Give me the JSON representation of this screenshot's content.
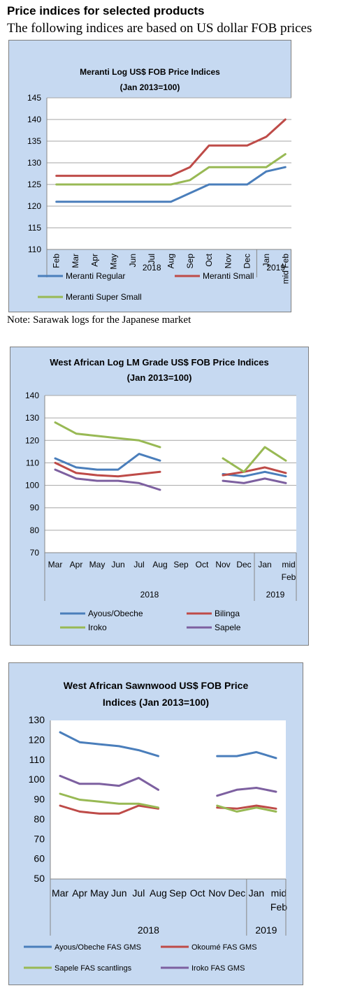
{
  "header": {
    "title": "Price indices for selected products",
    "subtitle": "The following indices are based on US dollar FOB prices"
  },
  "note": "Note: Sarawak logs for the Japanese market",
  "colors": {
    "panel_bg": "#c6d9f1",
    "plot_bg": "#ffffff",
    "blue": "#4a7ebb",
    "red": "#be4b48",
    "green": "#98b954",
    "purple": "#7d60a0"
  },
  "chart_data": [
    {
      "type": "line",
      "title": "Meranti Log US$ FOB Price Indices",
      "subtitle": "(Jan 2013=100)",
      "categories": [
        "Feb",
        "Mar",
        "Apr",
        "May",
        "Jun",
        "Jul",
        "Aug",
        "Sep",
        "Oct",
        "Nov",
        "Dec",
        "Jan",
        "mid Feb"
      ],
      "year_labels": [
        "2018",
        "2019"
      ],
      "ylim": [
        110,
        145
      ],
      "yticks": [
        110,
        115,
        120,
        125,
        130,
        135,
        140,
        145
      ],
      "grid": true,
      "legend_position": "bottom",
      "series": [
        {
          "name": "Meranti Regular",
          "color": "#4a7ebb",
          "values": [
            121,
            121,
            121,
            121,
            121,
            121,
            121,
            123,
            125,
            125,
            125,
            128,
            129
          ]
        },
        {
          "name": "Meranti Small",
          "color": "#be4b48",
          "values": [
            127,
            127,
            127,
            127,
            127,
            127,
            127,
            129,
            134,
            134,
            134,
            136,
            140
          ]
        },
        {
          "name": "Meranti Super Small",
          "color": "#98b954",
          "values": [
            125,
            125,
            125,
            125,
            125,
            125,
            125,
            126,
            129,
            129,
            129,
            129,
            132
          ]
        }
      ]
    },
    {
      "type": "line",
      "title": "West African Log LM Grade US$ FOB Price Indices",
      "subtitle": "(Jan 2013=100)",
      "categories": [
        "Mar",
        "Apr",
        "May",
        "Jun",
        "Jul",
        "Aug",
        "Sep",
        "Oct",
        "Nov",
        "Dec",
        "Jan",
        "mid Feb"
      ],
      "year_labels": [
        "2018",
        "2019"
      ],
      "ylim": [
        70,
        140
      ],
      "yticks": [
        70,
        80,
        90,
        100,
        110,
        120,
        130,
        140
      ],
      "grid": true,
      "legend_position": "bottom",
      "series": [
        {
          "name": "Ayous/Obeche",
          "color": "#4a7ebb",
          "values": [
            112,
            108,
            107,
            107,
            114,
            111,
            null,
            null,
            105,
            104,
            106,
            104
          ]
        },
        {
          "name": "Bilinga",
          "color": "#be4b48",
          "values": [
            110,
            105.5,
            104.5,
            104,
            105,
            106,
            null,
            null,
            104.5,
            106,
            108,
            105.5
          ]
        },
        {
          "name": "Iroko",
          "color": "#98b954",
          "values": [
            128,
            123,
            122,
            121,
            120,
            117,
            null,
            null,
            112,
            106,
            117,
            111
          ]
        },
        {
          "name": "Sapele",
          "color": "#7d60a0",
          "values": [
            107,
            103,
            102,
            102,
            101,
            98,
            null,
            null,
            102,
            101,
            103,
            101
          ]
        }
      ]
    },
    {
      "type": "line",
      "title": "West African Sawnwood US$ FOB Price",
      "subtitle": "Indices (Jan 2013=100)",
      "categories": [
        "Mar",
        "Apr",
        "May",
        "Jun",
        "Jul",
        "Aug",
        "Sep",
        "Oct",
        "Nov",
        "Dec",
        "Jan",
        "mid Feb"
      ],
      "year_labels": [
        "2018",
        "2019"
      ],
      "ylim": [
        50,
        130
      ],
      "yticks": [
        50,
        60,
        70,
        80,
        90,
        100,
        110,
        120,
        130
      ],
      "grid": false,
      "legend_position": "bottom",
      "series": [
        {
          "name": "Ayous/Obeche FAS GMS",
          "color": "#4a7ebb",
          "values": [
            124,
            119,
            118,
            117,
            115,
            112,
            null,
            null,
            112,
            112,
            114,
            111
          ]
        },
        {
          "name": "Okoumé FAS GMS",
          "color": "#be4b48",
          "values": [
            87,
            84,
            83,
            83,
            87,
            85.5,
            null,
            null,
            86,
            85.5,
            87,
            85.5
          ]
        },
        {
          "name": "Sapele FAS scantlings",
          "color": "#98b954",
          "values": [
            93,
            90,
            89,
            88,
            88,
            86,
            null,
            null,
            87,
            84,
            86,
            84
          ]
        },
        {
          "name": "Iroko FAS GMS",
          "color": "#7d60a0",
          "values": [
            102,
            98,
            98,
            97,
            101,
            95,
            null,
            null,
            92,
            95,
            96,
            94
          ]
        }
      ]
    }
  ]
}
